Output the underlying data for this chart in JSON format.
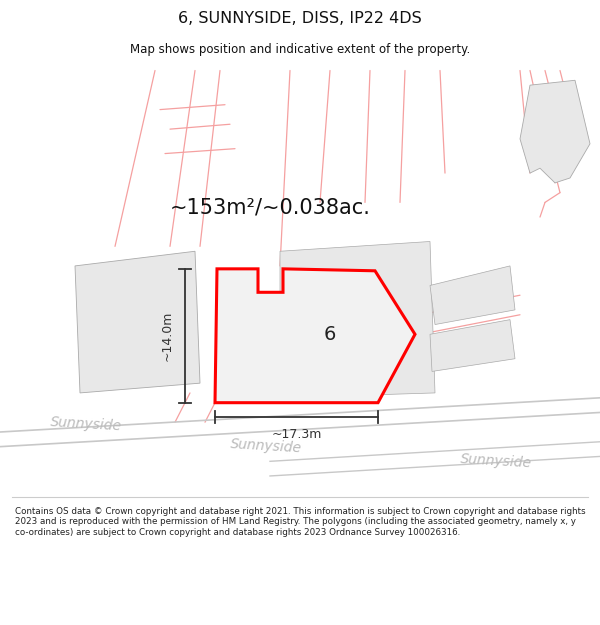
{
  "title": "6, SUNNYSIDE, DISS, IP22 4DS",
  "subtitle": "Map shows position and indicative extent of the property.",
  "footer": "Contains OS data © Crown copyright and database right 2021. This information is subject to Crown copyright and database rights 2023 and is reproduced with the permission of HM Land Registry. The polygons (including the associated geometry, namely x, y co-ordinates) are subject to Crown copyright and database rights 2023 Ordnance Survey 100026316.",
  "bg_color": "#ffffff",
  "area_label": "~153m²/~0.038ac.",
  "number_label": "6",
  "dim_width": "~17.3m",
  "dim_height": "~14.0m",
  "street_label": "Sunnyside",
  "pink_color": "#f5a0a0",
  "gray_color": "#d8d8d8",
  "light_gray": "#e8e8e8",
  "road_color": "#cccccc",
  "polygon_edge": "#ff0000",
  "polygon_fill": "#f2f2f2",
  "dim_color": "#333333",
  "text_color": "#111111",
  "street_color": "#bbbbbb",
  "footer_color": "#222222"
}
